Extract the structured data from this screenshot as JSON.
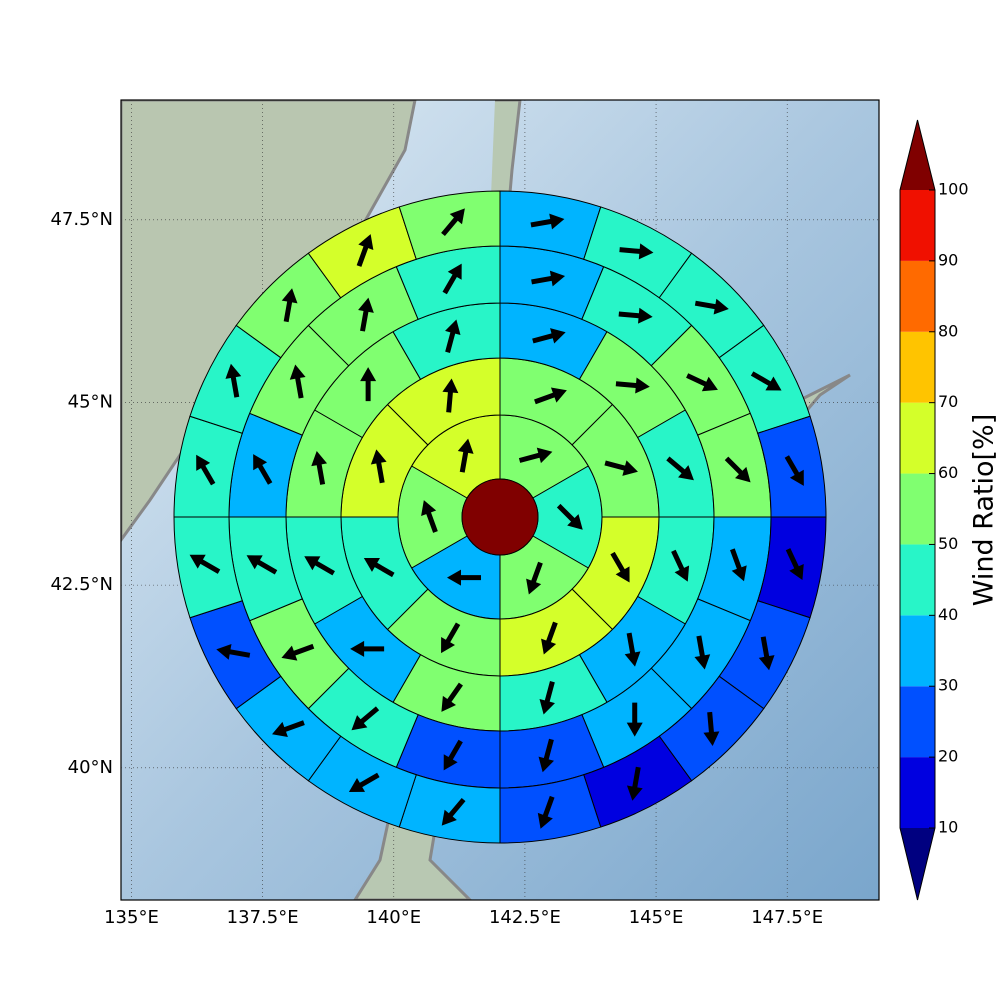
{
  "chart_data": {
    "type": "polar-sectors",
    "xlim": [
      134.8,
      149.25
    ],
    "ylim": [
      38.19,
      49.14
    ],
    "xticks": [
      {
        "value": 135,
        "label": "135°E"
      },
      {
        "value": 137.5,
        "label": "137.5°E"
      },
      {
        "value": 140,
        "label": "140°E"
      },
      {
        "value": 142.5,
        "label": "142.5°E"
      },
      {
        "value": 145,
        "label": "145°E"
      },
      {
        "value": 147.5,
        "label": "147.5°E"
      }
    ],
    "yticks": [
      {
        "value": 40,
        "label": "40°N"
      },
      {
        "value": 42.5,
        "label": "42.5°N"
      },
      {
        "value": 45,
        "label": "45°N"
      },
      {
        "value": 47.5,
        "label": "47.5°N"
      }
    ],
    "grid": true,
    "center_value": 105,
    "rings": [
      {
        "values": [
          55,
          45,
          55,
          35,
          55,
          65
        ],
        "directions": [
          75,
          135,
          200,
          270,
          340,
          10
        ]
      },
      {
        "values": [
          55,
          55,
          65,
          65,
          55,
          45,
          65,
          65
        ],
        "directions": [
          70,
          105,
          150,
          200,
          210,
          300,
          350,
          5
        ]
      },
      {
        "values": [
          35,
          55,
          45,
          45,
          35,
          45,
          55,
          35,
          45,
          55,
          55,
          45
        ],
        "directions": [
          75,
          95,
          130,
          155,
          170,
          195,
          215,
          270,
          300,
          350,
          0,
          15
        ]
      },
      {
        "values": [
          35,
          45,
          55,
          55,
          35,
          35,
          35,
          25,
          25,
          45,
          55,
          45,
          35,
          55,
          55,
          45
        ],
        "directions": [
          80,
          95,
          115,
          135,
          160,
          170,
          180,
          195,
          210,
          230,
          250,
          300,
          330,
          350,
          10,
          30
        ]
      },
      {
        "values": [
          35,
          45,
          45,
          45,
          25,
          15,
          25,
          25,
          15,
          25,
          35,
          35,
          35,
          25,
          45,
          45,
          45,
          55,
          65,
          55
        ],
        "directions": [
          80,
          95,
          100,
          120,
          150,
          155,
          170,
          175,
          190,
          200,
          220,
          240,
          250,
          280,
          300,
          330,
          350,
          10,
          20,
          40
        ]
      }
    ],
    "colorbar": {
      "label": "Wind Ratio[%]",
      "ticks": [
        10,
        20,
        30,
        40,
        50,
        60,
        70,
        80,
        90,
        100
      ],
      "colors": [
        "#0000e0",
        "#0050ff",
        "#00b4ff",
        "#28f5c8",
        "#80ff70",
        "#d4ff2a",
        "#ffc400",
        "#ff6a00",
        "#f01000"
      ],
      "under_color": "#000080",
      "over_color": "#800000"
    }
  }
}
